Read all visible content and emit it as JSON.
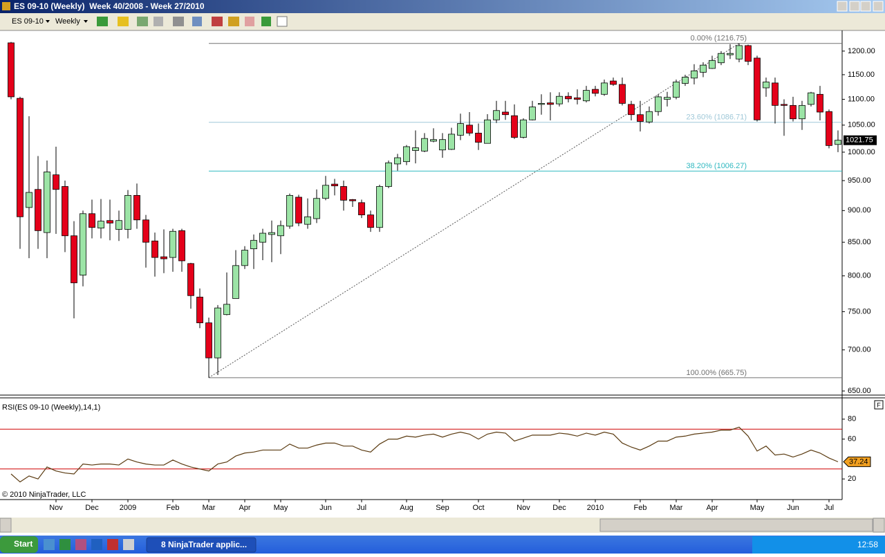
{
  "window": {
    "title": "ES 09-10 (Weekly)  Week 40/2008 - Week 27/2010"
  },
  "toolbar": {
    "instrument": "ES 09-10",
    "period": "Weekly"
  },
  "chart_data": [
    {
      "type": "candlestick",
      "categories": [
        null,
        null,
        null,
        null,
        null,
        "Nov",
        null,
        null,
        null,
        "Dec",
        null,
        null,
        null,
        "2009",
        null,
        null,
        null,
        null,
        "Feb",
        null,
        null,
        null,
        "Mar",
        null,
        null,
        null,
        "Apr",
        null,
        null,
        null,
        "May",
        null,
        null,
        null,
        null,
        "Jun",
        null,
        null,
        null,
        "Jul",
        null,
        null,
        null,
        null,
        "Aug",
        null,
        null,
        null,
        "Sep",
        null,
        null,
        null,
        "Oct",
        null,
        null,
        null,
        null,
        "Nov",
        null,
        null,
        null,
        "Dec",
        null,
        null,
        null,
        "2010",
        null,
        null,
        null,
        null,
        "Feb",
        null,
        null,
        null,
        "Mar",
        null,
        null,
        null,
        "Apr",
        null,
        null,
        null,
        null,
        "May",
        null,
        null,
        null,
        "Jun",
        null,
        null,
        null,
        "Jul",
        null
      ],
      "open": [
        1218,
        1102,
        905,
        935,
        865,
        960,
        940,
        860,
        801,
        895,
        872,
        884,
        870,
        870,
        925,
        885,
        852,
        828,
        827,
        868,
        818,
        770,
        735,
        690,
        746,
        768,
        815,
        840,
        850,
        862,
        860,
        875,
        922,
        878,
        887,
        920,
        944,
        940,
        918,
        913,
        893,
        873,
        940,
        979,
        983,
        1003,
        1002,
        1020,
        1004,
        1005,
        1031,
        1050,
        1035,
        1016,
        1060,
        1075,
        1068,
        1027,
        1060,
        1090,
        1093,
        1091,
        1106,
        1103,
        1097,
        1120,
        1110,
        1137,
        1130,
        1090,
        1070,
        1056,
        1076,
        1100,
        1104,
        1132,
        1143,
        1155,
        1163,
        1175,
        1192,
        1183,
        1212,
        1185,
        1123,
        1133,
        1090,
        1088,
        1062,
        1090,
        1110,
        1076,
        1014
      ],
      "high": [
        1220,
        1105,
        1067,
        993,
        985,
        1010,
        950,
        883,
        900,
        918,
        919,
        918,
        900,
        934,
        945,
        893,
        865,
        870,
        871,
        871,
        819,
        782,
        742,
        759,
        805,
        838,
        844,
        862,
        871,
        884,
        884,
        928,
        926,
        920,
        935,
        958,
        953,
        950,
        919,
        918,
        900,
        943,
        985,
        997,
        1013,
        1040,
        1035,
        1044,
        1035,
        1045,
        1072,
        1075,
        1053,
        1071,
        1097,
        1097,
        1090,
        1063,
        1097,
        1110,
        1114,
        1114,
        1114,
        1120,
        1127,
        1127,
        1140,
        1144,
        1144,
        1097,
        1097,
        1086,
        1110,
        1115,
        1140,
        1150,
        1172,
        1176,
        1190,
        1200,
        1215,
        1216.75,
        1214,
        1190,
        1144,
        1144,
        1100,
        1105,
        1097,
        1115,
        1127,
        1080,
        1040
      ],
      "low": [
        1100,
        840,
        826,
        840,
        826,
        863,
        835,
        741,
        785,
        856,
        856,
        853,
        852,
        856,
        871,
        812,
        799,
        804,
        806,
        806,
        754,
        728,
        665.75,
        669,
        745,
        768,
        810,
        810,
        823,
        820,
        832,
        871,
        875,
        871,
        880,
        917,
        925,
        900,
        906,
        888,
        866,
        866,
        937,
        967,
        977,
        980,
        1000,
        1018,
        990,
        1004,
        1022,
        1030,
        1004,
        1016,
        1054,
        1060,
        1024,
        1025,
        1059,
        1070,
        1059,
        1086,
        1094,
        1090,
        1094,
        1106,
        1107,
        1127,
        1088,
        1059,
        1038,
        1053,
        1068,
        1086,
        1100,
        1127,
        1130,
        1145,
        1162,
        1170,
        1183,
        1176,
        1170,
        1057,
        1105,
        1053,
        1030,
        1057,
        1041,
        1086,
        1059,
        1007,
        1000
      ],
      "close": [
        1105,
        890,
        930,
        868,
        965,
        935,
        860,
        790,
        895,
        873,
        883,
        880,
        884,
        925,
        885,
        850,
        827,
        825,
        867,
        822,
        772,
        735,
        690,
        755,
        760,
        815,
        838,
        853,
        864,
        865,
        876,
        925,
        880,
        890,
        920,
        942,
        941,
        917,
        916,
        893,
        873,
        940,
        981,
        990,
        1010,
        1008,
        1025,
        1023,
        1023,
        1033,
        1053,
        1035,
        1018,
        1060,
        1078,
        1070,
        1027,
        1060,
        1085,
        1092,
        1090,
        1106,
        1101,
        1100,
        1118,
        1112,
        1133,
        1130,
        1092,
        1070,
        1057,
        1076,
        1105,
        1104,
        1135,
        1145,
        1158,
        1170,
        1180,
        1195,
        1195,
        1212,
        1178,
        1060,
        1135,
        1088,
        1088,
        1062,
        1088,
        1113,
        1075,
        1012,
        1021.75
      ],
      "ylim": [
        646,
        1244
      ],
      "log": true,
      "yticks": [
        {
          "value": 650,
          "label": "650.00"
        },
        {
          "value": 700,
          "label": "700.00"
        },
        {
          "value": 750,
          "label": "750.00"
        },
        {
          "value": 800,
          "label": "800.00"
        },
        {
          "value": 850,
          "label": "850.00"
        },
        {
          "value": 900,
          "label": "900.00"
        },
        {
          "value": 950,
          "label": "950.00"
        },
        {
          "value": 1000,
          "label": "1000.00"
        },
        {
          "value": 1050,
          "label": "1050.00"
        },
        {
          "value": 1100,
          "label": "1100.00"
        },
        {
          "value": 1150,
          "label": "1150.00"
        },
        {
          "value": 1200,
          "label": "1200.00"
        }
      ],
      "up_color": "#9ce4a6",
      "down_color": "#e4001a",
      "fibonacci": {
        "low": 665.75,
        "high": 1216.75,
        "levels": [
          {
            "value": 0,
            "label": "0.00% (1216.75)",
            "color": "#707070"
          },
          {
            "value": 23.6,
            "label": "23.60% (1086.71)",
            "color": "#9fc8d8"
          },
          {
            "value": 38.2,
            "label": "38.20% (1006.27)",
            "color": "#2fb8c0"
          },
          {
            "value": 100,
            "label": "100.00% (665.75)",
            "color": "#707070"
          }
        ]
      }
    },
    {
      "type": "line",
      "title": "RSI(ES 09-10 (Weekly),14,1)",
      "color": "#5a3a10",
      "values": [
        25,
        17,
        23,
        20,
        32,
        28,
        26,
        25,
        35,
        34,
        35,
        35,
        34,
        40,
        37,
        35,
        34,
        34,
        39,
        35,
        32,
        30,
        28,
        35,
        37,
        43,
        46,
        47,
        49,
        49,
        49,
        55,
        51,
        51,
        54,
        56,
        56,
        53,
        53,
        49,
        47,
        55,
        60,
        60,
        63,
        62,
        64,
        65,
        62,
        65,
        67,
        65,
        60,
        65,
        67,
        66,
        58,
        61,
        64,
        64,
        64,
        66,
        65,
        63,
        66,
        64,
        67,
        65,
        56,
        52,
        49,
        53,
        58,
        58,
        62,
        63,
        65,
        66,
        67,
        69,
        69,
        72,
        63,
        48,
        53,
        44,
        45,
        42,
        45,
        49,
        46,
        41,
        37.24
      ],
      "ylim": [
        0,
        100
      ],
      "yticks": [
        20,
        60,
        80
      ],
      "reference_lines": [
        30,
        70
      ],
      "reference_color": "#d00000",
      "label_color": "#f2a020"
    }
  ],
  "copyright": "© 2010 NinjaTrader, LLC",
  "panel_button": "F",
  "taskbar": {
    "start": "Start",
    "task": "8 NinjaTrader applic...",
    "clock": "12:58"
  }
}
